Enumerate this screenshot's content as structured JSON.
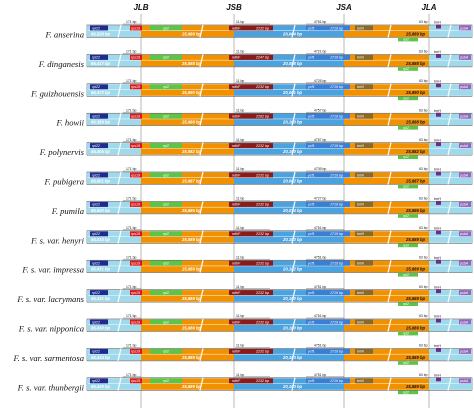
{
  "junctions": [
    "JLB",
    "JSB",
    "JSA",
    "JLA"
  ],
  "colors": {
    "lsc_band": "#9fd9ec",
    "ir_band": "#f29100",
    "ssc_band": "#4aa3df",
    "rpl22": "#1f2c8f",
    "rps19": "#d7191c",
    "rpl2": "#5cc447",
    "ndhF": "#8b1a1a",
    "ycf1": "#3a7fd5",
    "trnH": "#6b2d8c",
    "psbA": "#9467bd",
    "trnN": "#8a6a2a",
    "frame": "#3f3f3f"
  },
  "species": [
    {
      "name": "F. anserina",
      "lsc": "86,528 bp",
      "ira": "25,889 bp",
      "ssc": "20,064 bp",
      "irb": "25,889 bp",
      "ndhF_len": "2232 bp",
      "ycf1_len": "1719 bp",
      "left_dist": "171 bp",
      "ndhF_dist": "11 bp",
      "ycf1_dist": "4751 bp",
      "right_dist": "63 bp"
    },
    {
      "name": "F. dinganesis",
      "lsc": "86,417 bp",
      "ira": "25,888 bp",
      "ssc": "20,088 bp",
      "irb": "25,888 bp",
      "ndhF_len": "2247 bp",
      "ycf1_len": "1719 bp",
      "left_dist": "171 bp",
      "ndhF_dist": "11 bp",
      "ycf1_dist": "4721 bp",
      "right_dist": "63 bp"
    },
    {
      "name": "F. guizhouensis",
      "lsc": "86,472 bp",
      "ira": "25,890 bp",
      "ssc": "20,061 bp",
      "irb": "25,890 bp",
      "ndhF_len": "2232 bp",
      "ycf1_len": "1719 bp",
      "left_dist": "171 bp",
      "ndhF_dist": "11 bp",
      "ycf1_dist": "4725 bp",
      "right_dist": "63 bp"
    },
    {
      "name": "F. howii",
      "lsc": "86,389 bp",
      "ira": "25,888 bp",
      "ssc": "20,100 bp",
      "irb": "25,888 bp",
      "ndhF_len": "2262 bp",
      "ycf1_len": "1719 bp",
      "left_dist": "171 bp",
      "ndhF_dist": "11 bp",
      "ycf1_dist": "4757 bp",
      "right_dist": "63 bp"
    },
    {
      "name": "F. polynervis",
      "lsc": "86,405 bp",
      "ira": "25,882 bp",
      "ssc": "20,100 bp",
      "irb": "25,882 bp",
      "ndhF_len": "2232 bp",
      "ycf1_len": "1719 bp",
      "left_dist": "171 bp",
      "ndhF_dist": "11 bp",
      "ycf1_dist": "4757 bp",
      "right_dist": "63 bp"
    },
    {
      "name": "F. pubigera",
      "lsc": "86,901 bp",
      "ira": "25,887 bp",
      "ssc": "20,082 bp",
      "irb": "25,887 bp",
      "ndhF_len": "2232 bp",
      "ycf1_len": "1719 bp",
      "left_dist": "171 bp",
      "ndhF_dist": "11 bp",
      "ycf1_dist": "4739 bp",
      "right_dist": "63 bp"
    },
    {
      "name": "F. pumila",
      "lsc": "86,620 bp",
      "ira": "25,886 bp",
      "ssc": "20,034 bp",
      "irb": "25,886 bp",
      "ndhF_len": "2232 bp",
      "ycf1_len": "1719 bp",
      "left_dist": "171 bp",
      "ndhF_dist": "11 bp",
      "ycf1_dist": "4727 bp",
      "right_dist": "63 bp"
    },
    {
      "name": "F. s. var. henyri",
      "lsc": "86,434 bp",
      "ira": "25,889 bp",
      "ssc": "20,103 bp",
      "irb": "25,889 bp",
      "ndhF_len": "2232 bp",
      "ycf1_len": "1719 bp",
      "left_dist": "171 bp",
      "ndhF_dist": "11 bp",
      "ycf1_dist": "4751 bp",
      "right_dist": "63 bp"
    },
    {
      "name": "F. s. var. impressa",
      "lsc": "86,431 bp",
      "ira": "25,889 bp",
      "ssc": "20,102 bp",
      "irb": "25,889 bp",
      "ndhF_len": "2232 bp",
      "ycf1_len": "1719 bp",
      "left_dist": "171 bp",
      "ndhF_dist": "11 bp",
      "ycf1_dist": "4751 bp",
      "right_dist": "63 bp"
    },
    {
      "name": "F. s. var. lacrymans",
      "lsc": "86,431 bp",
      "ira": "25,889 bp",
      "ssc": "20,100 bp",
      "irb": "25,889 bp",
      "ndhF_len": "2232 bp",
      "ycf1_len": "1719 bp",
      "left_dist": "171 bp",
      "ndhF_dist": "11 bp",
      "ycf1_dist": "4751 bp",
      "right_dist": "63 bp"
    },
    {
      "name": "F. s. var. nipponica",
      "lsc": "86,430 bp",
      "ira": "25,889 bp",
      "ssc": "20,100 bp",
      "irb": "25,889 bp",
      "ndhF_len": "2232 bp",
      "ycf1_len": "1719 bp",
      "left_dist": "171 bp",
      "ndhF_dist": "11 bp",
      "ycf1_dist": "4751 bp",
      "right_dist": "63 bp"
    },
    {
      "name": "F. s. var. sarmentosa",
      "lsc": "86,434 bp",
      "ira": "25,889 bp",
      "ssc": "20,103 bp",
      "irb": "25,889 bp",
      "ndhF_len": "2232 bp",
      "ycf1_len": "1719 bp",
      "left_dist": "171 bp",
      "ndhF_dist": "11 bp",
      "ycf1_dist": "4751 bp",
      "right_dist": "63 bp"
    },
    {
      "name": "F. s. var. thunbergii",
      "lsc": "86,426 bp",
      "ira": "25,889 bp",
      "ssc": "20,103 bp",
      "irb": "25,889 bp",
      "ndhF_len": "2232 bp",
      "ycf1_len": "1719 bp",
      "left_dist": "171 bp",
      "ndhF_dist": "11 bp",
      "ycf1_dist": "4751 bp",
      "right_dist": "63 bp"
    }
  ],
  "genes": {
    "rpl22": "rpl22",
    "rps19": "rps19",
    "rpl2": "rpl2",
    "ndhF": "ndhF",
    "ycf1": "ycf1",
    "trnH": "trnH",
    "psbA": "psbA",
    "trnN": "trnN"
  }
}
